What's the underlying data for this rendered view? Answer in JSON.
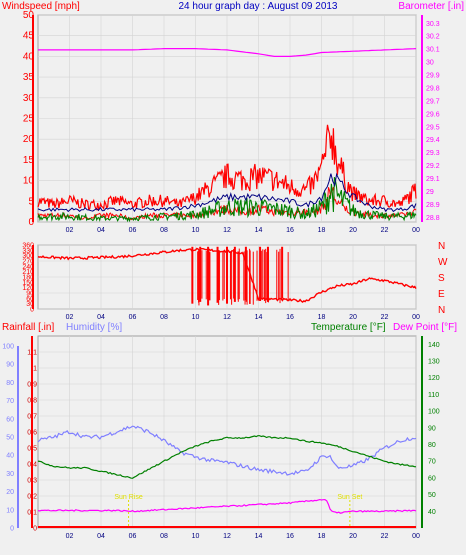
{
  "header": {
    "left": "Windspeed [mph]",
    "center": "24 hour graph day : August 09 2013",
    "right": "Barometer [.in]"
  },
  "colors": {
    "red": "#ff0000",
    "magenta": "#ff00ff",
    "blue": "#000080",
    "green": "#008000",
    "lavender": "#8080ff",
    "darkred": "#cc0000",
    "sun": "#e0e000",
    "bg": "#f0f0f0",
    "grid": "#d4d4d4"
  },
  "chart_data": [
    {
      "type": "line",
      "title": "24 hour graph day : August 09 2013",
      "ylabel": "Windspeed [mph]",
      "ylabel_right": "Barometer [.in]",
      "ylim": [
        0,
        50
      ],
      "ylim_right": [
        28.76,
        30.36
      ],
      "left_ticks": [
        "0",
        "5",
        "10",
        "15",
        "20",
        "25",
        "30",
        "35",
        "40",
        "45",
        "50"
      ],
      "right_ticks": [
        "28.8",
        "28.9",
        "29",
        "29.1",
        "29.2",
        "29.3",
        "29.4",
        "29.5",
        "29.6",
        "29.7",
        "29.8",
        "29.9",
        "30",
        "30.1",
        "30.2",
        "30.3"
      ],
      "x_ticks": [
        "02",
        "04",
        "06",
        "08",
        "10",
        "12",
        "14",
        "16",
        "18",
        "20",
        "22",
        "00"
      ],
      "x_range_hours": [
        0,
        24
      ],
      "series": [
        {
          "color": "red",
          "axis": "left",
          "x": [
            0,
            1,
            2,
            3,
            4,
            5,
            6,
            7,
            8,
            9,
            10,
            11,
            12,
            13,
            14,
            15,
            16,
            17,
            17.5,
            18,
            18.3,
            18.6,
            19,
            19.5,
            20,
            21,
            22,
            23,
            24
          ],
          "values": [
            6,
            5,
            6,
            5,
            5,
            6,
            5,
            6,
            6,
            5,
            7,
            10,
            13,
            12,
            13,
            12,
            10,
            9,
            11,
            15,
            20,
            26,
            18,
            12,
            8,
            6,
            6,
            5,
            9
          ],
          "min": [
            2,
            2,
            2,
            1,
            2,
            2,
            1,
            2,
            2,
            2,
            2,
            3,
            4,
            3,
            4,
            3,
            3,
            3,
            3,
            4,
            6,
            10,
            6,
            4,
            3,
            2,
            2,
            2,
            3
          ]
        },
        {
          "color": "blue",
          "axis": "left",
          "x": [
            0,
            2,
            4,
            6,
            8,
            10,
            12,
            14,
            16,
            17,
            18,
            18.6,
            19,
            20,
            21,
            22,
            23,
            24
          ],
          "values": [
            3,
            3,
            3,
            3,
            3,
            4,
            6,
            6,
            5,
            4,
            6,
            11,
            10,
            6,
            4,
            3,
            3,
            4
          ]
        },
        {
          "color": "green",
          "axis": "left",
          "x": [
            0,
            2,
            4,
            6,
            8,
            10,
            12,
            14,
            16,
            17,
            18,
            18.6,
            19,
            20,
            21,
            22,
            23,
            24
          ],
          "values": [
            1.5,
            1.5,
            1,
            1,
            1.5,
            2,
            4,
            4,
            3,
            2,
            4,
            8,
            7,
            3,
            2,
            1.5,
            1.5,
            2
          ]
        },
        {
          "color": "magenta",
          "axis": "right",
          "x": [
            0,
            2,
            4,
            6,
            8,
            10,
            12,
            14,
            15,
            16,
            17,
            18,
            20,
            22,
            24
          ],
          "values": [
            30.09,
            30.09,
            30.09,
            30.09,
            30.1,
            30.1,
            30.09,
            30.06,
            30.04,
            30.04,
            30.05,
            30.07,
            30.08,
            30.09,
            30.1
          ]
        }
      ]
    },
    {
      "type": "line",
      "title": "",
      "ylabel": "",
      "ylim": [
        0,
        360
      ],
      "left_ticks": [
        "0",
        "30",
        "60",
        "90",
        "120",
        "150",
        "180",
        "210",
        "240",
        "270",
        "300",
        "330",
        "360"
      ],
      "compass": [
        "N",
        "W",
        "S",
        "E",
        "N"
      ],
      "x_ticks": [
        "02",
        "04",
        "06",
        "08",
        "10",
        "12",
        "14",
        "16",
        "18",
        "20",
        "22",
        "00"
      ],
      "series": [
        {
          "color": "red",
          "x": [
            0,
            2,
            4,
            5,
            6,
            7,
            8,
            9,
            10,
            12,
            13,
            14,
            15,
            16,
            17,
            18,
            19,
            20,
            21,
            22,
            23,
            24
          ],
          "values": [
            295,
            285,
            290,
            293,
            300,
            310,
            320,
            330,
            335,
            325,
            315,
            60,
            55,
            50,
            45,
            95,
            130,
            140,
            170,
            160,
            140,
            120
          ],
          "drops": [
            [
              9.8,
              30
            ],
            [
              10.3,
              40
            ],
            [
              10.8,
              20
            ],
            [
              11.4,
              35
            ],
            [
              12.0,
              30
            ],
            [
              12.5,
              40
            ],
            [
              13.2,
              50
            ],
            [
              14.1,
              45
            ],
            [
              14.6,
              40
            ],
            [
              15.5,
              60
            ]
          ]
        }
      ]
    },
    {
      "type": "line",
      "title": "",
      "ylabel": "Rainfall [.in]",
      "ylabel_mid": "Humidity [%]",
      "ylabel_right": "Temperature [°F]",
      "ylabel_right2": "Dew Point [°F]",
      "ylim": [
        0,
        1.2
      ],
      "ylim_right": [
        30,
        145
      ],
      "left_ticks": [
        "0",
        "0.1",
        "0.2",
        "0.3",
        "0.4",
        "0.5",
        "0.6",
        "0.7",
        "0.8",
        "0.9",
        "1",
        "1.1"
      ],
      "humidity_ticks": [
        "0",
        "10",
        "20",
        "30",
        "40",
        "50",
        "60",
        "70",
        "80",
        "90",
        "100"
      ],
      "right_ticks": [
        "40",
        "50",
        "60",
        "70",
        "80",
        "90",
        "100",
        "110",
        "120",
        "130",
        "140"
      ],
      "x_ticks": [
        "02",
        "04",
        "06",
        "08",
        "10",
        "12",
        "14",
        "16",
        "18",
        "20",
        "22",
        "00"
      ],
      "annotations": [
        "Sun Rise",
        "Sun Set"
      ],
      "series": [
        {
          "name": "Humidity",
          "color": "lavender",
          "axis": "humidity",
          "x": [
            0,
            1,
            2,
            3,
            4,
            5,
            6,
            7,
            8,
            9,
            10,
            11,
            12,
            13,
            14,
            15,
            16,
            17,
            18,
            18.5,
            19,
            20,
            21,
            22,
            23,
            24
          ],
          "values": [
            48,
            50,
            53,
            50,
            50,
            53,
            56,
            53,
            48,
            42,
            39,
            37,
            36,
            34,
            32,
            31,
            30,
            31,
            39,
            40,
            33,
            34,
            38,
            44,
            48,
            50
          ]
        },
        {
          "name": "Temperature",
          "color": "green",
          "axis": "right",
          "x": [
            0,
            1,
            2,
            3,
            4,
            5,
            6,
            7,
            8,
            9,
            10,
            11,
            12,
            13,
            14,
            15,
            16,
            17,
            18,
            19,
            20,
            21,
            22,
            23,
            24
          ],
          "values": [
            70,
            67,
            66,
            66,
            64,
            62,
            60,
            65,
            70,
            75,
            79,
            82,
            84,
            84,
            85,
            84,
            84,
            82,
            81,
            79,
            76,
            73,
            70,
            68,
            67
          ]
        },
        {
          "name": "Dew Point",
          "color": "magenta",
          "axis": "right",
          "x": [
            0,
            2,
            4,
            5,
            6,
            8,
            10,
            12,
            14,
            16,
            17,
            18,
            18.3,
            18.6,
            19,
            20,
            22,
            24
          ],
          "values": [
            40.5,
            40.5,
            40.5,
            40.5,
            40,
            41,
            42,
            43,
            44,
            45,
            46,
            47,
            47,
            40,
            39,
            40,
            40,
            40.5
          ]
        },
        {
          "name": "Rainfall",
          "color": "red",
          "axis": "left",
          "x": [
            0,
            24
          ],
          "values": [
            0,
            0
          ]
        }
      ]
    }
  ]
}
